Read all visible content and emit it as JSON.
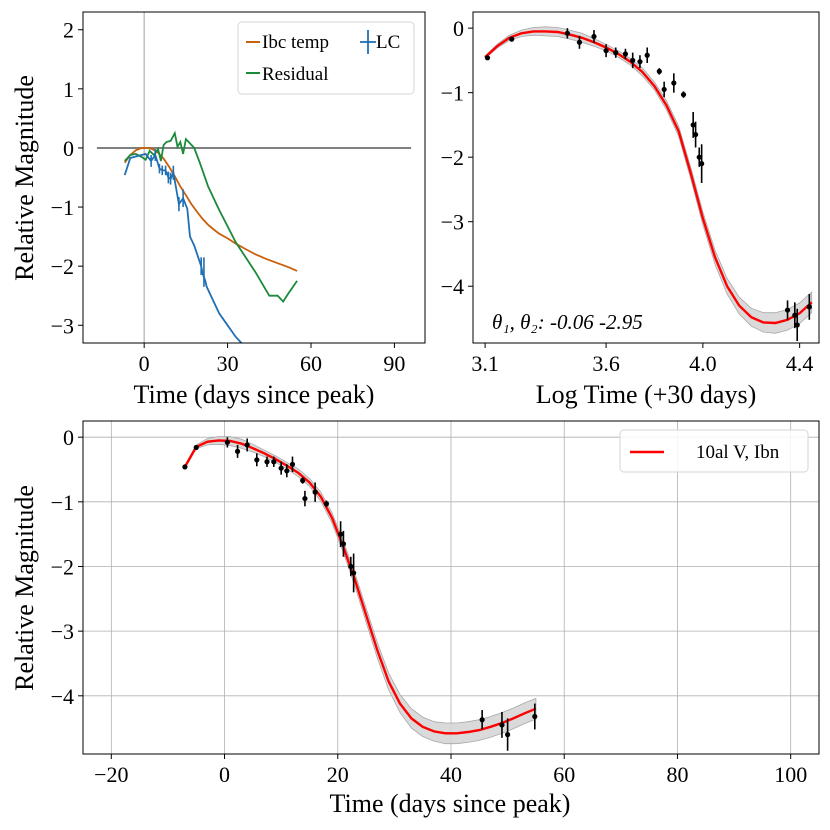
{
  "chart_data": [
    {
      "type": "line",
      "panel": "top-left",
      "xlabel": "Time (days since peak)",
      "ylabel": "Relative Magnitude",
      "xlim": [
        -22,
        101
      ],
      "ylim": [
        -3.3,
        2.3
      ],
      "xticks": [
        0,
        30,
        60,
        90
      ],
      "yticks": [
        2,
        1,
        0,
        -1,
        -2,
        -3
      ],
      "grid": false,
      "legend_position": "top-right",
      "colors": {
        "ibc": "#c8600c",
        "residual": "#1b8a3a",
        "lc": "#1f6fb4",
        "zero": "#808080",
        "vline": "#b0b0b0"
      },
      "vline_x": 0,
      "zero_line": {
        "x": [
          -17,
          96
        ],
        "y": 0
      },
      "series": [
        {
          "name": "Ibc temp",
          "x": [
            -7,
            -5,
            -3,
            -1,
            1,
            3,
            5,
            7,
            9,
            11,
            13,
            15,
            17,
            19,
            21,
            23,
            25,
            27,
            30,
            33,
            36,
            40,
            44,
            48,
            52,
            55
          ],
          "y": [
            -0.25,
            -0.12,
            -0.04,
            0,
            0,
            -0.02,
            -0.08,
            -0.18,
            -0.32,
            -0.48,
            -0.65,
            -0.8,
            -0.95,
            -1.08,
            -1.2,
            -1.3,
            -1.38,
            -1.45,
            -1.53,
            -1.62,
            -1.7,
            -1.8,
            -1.88,
            -1.95,
            -2.02,
            -2.08
          ]
        },
        {
          "name": "Residual",
          "x": [
            -7,
            -5,
            -3,
            -1,
            0.5,
            2,
            3.5,
            5,
            6,
            7,
            8,
            9.5,
            11,
            12,
            13,
            14,
            15,
            16,
            18,
            20,
            23,
            27,
            33,
            40,
            45,
            48,
            50,
            52,
            55
          ],
          "y": [
            -0.22,
            -0.12,
            -0.1,
            -0.15,
            -0.2,
            -0.05,
            -0.12,
            -0.02,
            -0.22,
            0.05,
            0.1,
            0.12,
            0.25,
            0.02,
            0.1,
            -0.1,
            0.15,
            0.1,
            0.0,
            -0.25,
            -0.65,
            -1.05,
            -1.6,
            -2.1,
            -2.5,
            -2.5,
            -2.6,
            -2.45,
            -2.25
          ]
        },
        {
          "name": "LC",
          "x": [
            -7,
            -5,
            0.5,
            2.5,
            4,
            5.5,
            6.5,
            7.7,
            8.7,
            9.5,
            10.5,
            11.5,
            12.5,
            14,
            15.5,
            16.5,
            18,
            20.5,
            21,
            22,
            22.5,
            24,
            27,
            30,
            33,
            35
          ],
          "y": [
            -0.46,
            -0.17,
            -0.1,
            -0.22,
            -0.12,
            -0.35,
            -0.38,
            -0.38,
            -0.5,
            -0.52,
            -0.42,
            -0.68,
            -0.95,
            -0.85,
            -1.03,
            -1.5,
            -1.65,
            -2.0,
            -2.12,
            -2.25,
            -2.35,
            -2.5,
            -2.8,
            -3.0,
            -3.2,
            -3.3
          ]
        }
      ],
      "lc_error_bars": [
        {
          "x": 2.5,
          "y": -0.22,
          "err": 0.1
        },
        {
          "x": 4,
          "y": -0.12,
          "err": 0.1
        },
        {
          "x": 5.5,
          "y": -0.35,
          "err": 0.08
        },
        {
          "x": 6.5,
          "y": -0.38,
          "err": 0.08
        },
        {
          "x": 7.7,
          "y": -0.38,
          "err": 0.08
        },
        {
          "x": 8.7,
          "y": -0.5,
          "err": 0.1
        },
        {
          "x": 9.5,
          "y": -0.52,
          "err": 0.1
        },
        {
          "x": 10.5,
          "y": -0.42,
          "err": 0.12
        },
        {
          "x": 12.5,
          "y": -0.95,
          "err": 0.12
        },
        {
          "x": 14,
          "y": -0.85,
          "err": 0.15
        },
        {
          "x": 20.5,
          "y": -2.0,
          "err": 0.15
        },
        {
          "x": 21.5,
          "y": -2.1,
          "err": 0.25
        }
      ]
    },
    {
      "type": "line",
      "panel": "top-right",
      "xlabel": "Log Time (+30 days)",
      "xlim": [
        3.05,
        4.48
      ],
      "ylim": [
        -4.88,
        0.25
      ],
      "xticks": [
        3.1,
        3.6,
        4.0,
        4.4
      ],
      "xticklabels": [
        "3.1",
        "3.6",
        "4.0",
        "4.4"
      ],
      "yticks": [
        0,
        -1,
        -2,
        -3,
        -4
      ],
      "grid": false,
      "annotation": "θ₁, θ₂: -0.06 -2.95",
      "colors": {
        "fit": "#ff0000",
        "band": "#d3d3d3",
        "points": "#000000"
      },
      "fit": {
        "name": "fit",
        "x": [
          3.1,
          3.15,
          3.2,
          3.25,
          3.3,
          3.35,
          3.4,
          3.45,
          3.5,
          3.55,
          3.6,
          3.65,
          3.7,
          3.75,
          3.8,
          3.85,
          3.9,
          3.95,
          4.0,
          4.05,
          4.1,
          4.15,
          4.2,
          4.25,
          4.3,
          4.35,
          4.4,
          4.45
        ],
        "y": [
          -0.45,
          -0.28,
          -0.15,
          -0.08,
          -0.05,
          -0.05,
          -0.06,
          -0.1,
          -0.15,
          -0.22,
          -0.3,
          -0.4,
          -0.52,
          -0.68,
          -0.9,
          -1.2,
          -1.6,
          -2.25,
          -2.95,
          -3.55,
          -4.0,
          -4.3,
          -4.48,
          -4.56,
          -4.57,
          -4.52,
          -4.42,
          -4.25
        ],
        "band": [
          0.02,
          0.03,
          0.04,
          0.05,
          0.06,
          0.07,
          0.07,
          0.07,
          0.07,
          0.06,
          0.05,
          0.05,
          0.05,
          0.06,
          0.06,
          0.07,
          0.08,
          0.09,
          0.1,
          0.11,
          0.12,
          0.13,
          0.14,
          0.15,
          0.16,
          0.16,
          0.16,
          0.16
        ]
      },
      "points": [
        {
          "x": 3.11,
          "y": -0.46,
          "err": 0.03
        },
        {
          "x": 3.21,
          "y": -0.17,
          "err": 0.03
        },
        {
          "x": 3.44,
          "y": -0.08,
          "err": 0.08
        },
        {
          "x": 3.49,
          "y": -0.22,
          "err": 0.1
        },
        {
          "x": 3.55,
          "y": -0.13,
          "err": 0.1
        },
        {
          "x": 3.6,
          "y": -0.35,
          "err": 0.1
        },
        {
          "x": 3.64,
          "y": -0.38,
          "err": 0.08
        },
        {
          "x": 3.68,
          "y": -0.4,
          "err": 0.08
        },
        {
          "x": 3.71,
          "y": -0.5,
          "err": 0.12
        },
        {
          "x": 3.74,
          "y": -0.52,
          "err": 0.1
        },
        {
          "x": 3.77,
          "y": -0.42,
          "err": 0.12
        },
        {
          "x": 3.82,
          "y": -0.67,
          "err": 0.05
        },
        {
          "x": 3.84,
          "y": -0.95,
          "err": 0.12
        },
        {
          "x": 3.88,
          "y": -0.85,
          "err": 0.15
        },
        {
          "x": 3.92,
          "y": -1.03,
          "err": 0.05
        },
        {
          "x": 3.96,
          "y": -1.5,
          "err": 0.2
        },
        {
          "x": 3.97,
          "y": -1.65,
          "err": 0.2
        },
        {
          "x": 3.985,
          "y": -2.0,
          "err": 0.15
        },
        {
          "x": 3.995,
          "y": -2.1,
          "err": 0.3
        },
        {
          "x": 4.35,
          "y": -4.37,
          "err": 0.15
        },
        {
          "x": 4.38,
          "y": -4.45,
          "err": 0.2
        },
        {
          "x": 4.39,
          "y": -4.6,
          "err": 0.25
        },
        {
          "x": 4.44,
          "y": -4.32,
          "err": 0.2
        }
      ]
    },
    {
      "type": "line",
      "panel": "bottom",
      "xlabel": "Time (days since peak)",
      "ylabel": "Relative Magnitude",
      "xlim": [
        -25,
        105
      ],
      "ylim": [
        -4.9,
        0.25
      ],
      "xticks": [
        -20,
        0,
        20,
        40,
        60,
        80,
        100
      ],
      "xticklabels": [
        "−20",
        "0",
        "20",
        "40",
        "60",
        "80",
        "100"
      ],
      "yticks": [
        0,
        -1,
        -2,
        -3,
        -4
      ],
      "yticklabels": [
        "0",
        "−1",
        "−2",
        "−3",
        "−4"
      ],
      "grid": true,
      "legend_position": "top-right",
      "legend": [
        "10al V, Ibn"
      ],
      "colors": {
        "fit": "#ff0000",
        "band": "#d3d3d3",
        "points": "#000000"
      },
      "fit": {
        "name": "10al V, Ibn",
        "x": [
          -7,
          -5,
          -3,
          -1,
          1,
          3,
          5,
          7,
          9,
          11,
          13,
          15,
          17,
          19,
          21,
          23,
          25,
          27,
          29,
          31,
          33,
          35,
          37,
          39,
          41,
          43,
          45,
          47,
          49,
          51,
          53,
          55
        ],
        "y": [
          -0.46,
          -0.15,
          -0.07,
          -0.05,
          -0.06,
          -0.1,
          -0.17,
          -0.25,
          -0.34,
          -0.44,
          -0.55,
          -0.7,
          -0.92,
          -1.25,
          -1.7,
          -2.2,
          -2.75,
          -3.3,
          -3.78,
          -4.12,
          -4.35,
          -4.48,
          -4.55,
          -4.58,
          -4.58,
          -4.56,
          -4.53,
          -4.48,
          -4.42,
          -4.35,
          -4.27,
          -4.2
        ],
        "band": [
          0.02,
          0.03,
          0.05,
          0.06,
          0.07,
          0.07,
          0.06,
          0.05,
          0.05,
          0.05,
          0.06,
          0.06,
          0.07,
          0.08,
          0.09,
          0.1,
          0.11,
          0.12,
          0.13,
          0.14,
          0.15,
          0.15,
          0.15,
          0.16,
          0.16,
          0.16,
          0.16,
          0.16,
          0.16,
          0.16,
          0.16,
          0.16
        ]
      },
      "points": [
        {
          "x": -7,
          "y": -0.46,
          "err": 0.03
        },
        {
          "x": -5,
          "y": -0.16,
          "err": 0.03
        },
        {
          "x": 0.5,
          "y": -0.08,
          "err": 0.08
        },
        {
          "x": 2.3,
          "y": -0.22,
          "err": 0.1
        },
        {
          "x": 4,
          "y": -0.12,
          "err": 0.1
        },
        {
          "x": 5.7,
          "y": -0.35,
          "err": 0.1
        },
        {
          "x": 7.5,
          "y": -0.38,
          "err": 0.08
        },
        {
          "x": 8.7,
          "y": -0.38,
          "err": 0.08
        },
        {
          "x": 10,
          "y": -0.48,
          "err": 0.1
        },
        {
          "x": 11,
          "y": -0.52,
          "err": 0.1
        },
        {
          "x": 12,
          "y": -0.42,
          "err": 0.12
        },
        {
          "x": 13.8,
          "y": -0.67,
          "err": 0.05
        },
        {
          "x": 14.2,
          "y": -0.95,
          "err": 0.12
        },
        {
          "x": 16,
          "y": -0.85,
          "err": 0.15
        },
        {
          "x": 18,
          "y": -1.03,
          "err": 0.05
        },
        {
          "x": 20.5,
          "y": -1.5,
          "err": 0.2
        },
        {
          "x": 21,
          "y": -1.65,
          "err": 0.2
        },
        {
          "x": 22.3,
          "y": -2.0,
          "err": 0.15
        },
        {
          "x": 22.8,
          "y": -2.1,
          "err": 0.3
        },
        {
          "x": 45.5,
          "y": -4.37,
          "err": 0.15
        },
        {
          "x": 49,
          "y": -4.45,
          "err": 0.2
        },
        {
          "x": 50,
          "y": -4.6,
          "err": 0.25
        },
        {
          "x": 54.8,
          "y": -4.32,
          "err": 0.2
        }
      ]
    }
  ]
}
